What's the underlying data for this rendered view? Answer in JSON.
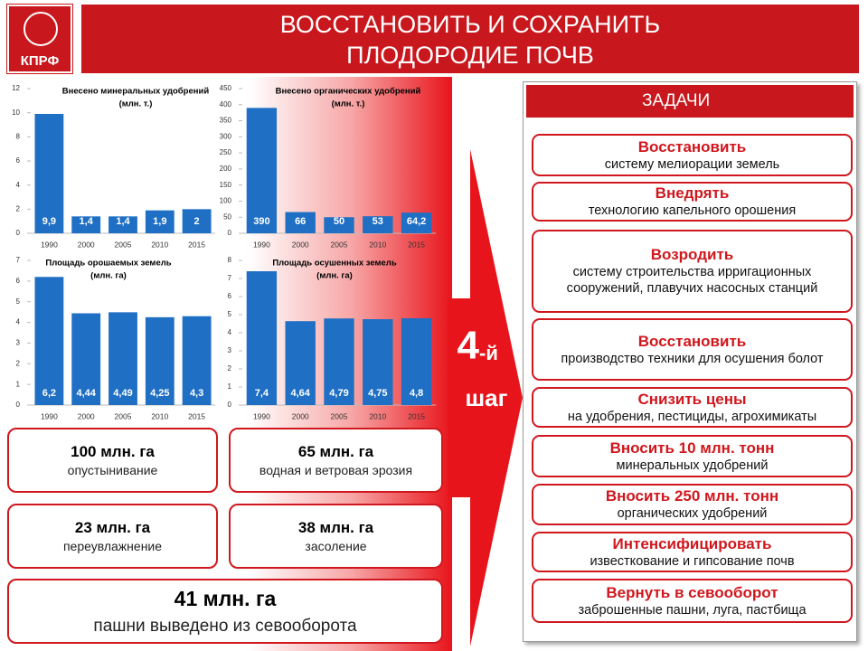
{
  "header": {
    "logo": "КПРФ",
    "title_lines": [
      "ВОССТАНОВИТЬ И СОХРАНИТЬ",
      "ПЛОДОРОДИЕ ПОЧВ"
    ]
  },
  "chart_data": [
    {
      "type": "bar",
      "title": "Внесено минеральных удобрений",
      "subtitle": "(млн. т.)",
      "color": "#1f6fc4",
      "categories": [
        "1990",
        "2000",
        "2005",
        "2010",
        "2015"
      ],
      "values": [
        9.9,
        1.4,
        1.4,
        1.9,
        2
      ],
      "value_labels": [
        "9,9",
        "1,4",
        "1,4",
        "1,9",
        "2"
      ],
      "ylim": [
        0,
        12
      ],
      "yticks": [
        0,
        2,
        4,
        6,
        8,
        10,
        12
      ]
    },
    {
      "type": "bar",
      "title": "Внесено органических удобрений",
      "subtitle": "(млн. т.)",
      "color": "#1f6fc4",
      "categories": [
        "1990",
        "2000",
        "2005",
        "2010",
        "2015"
      ],
      "values": [
        390,
        66,
        50,
        53,
        64.2
      ],
      "value_labels": [
        "390",
        "66",
        "50",
        "53",
        "64,2"
      ],
      "ylim": [
        0,
        450
      ],
      "yticks": [
        0,
        50,
        100,
        150,
        200,
        250,
        300,
        350,
        400,
        450
      ]
    },
    {
      "type": "bar",
      "title": "Площадь орошаемых земель",
      "subtitle": "(млн. га)",
      "color": "#1f6fc4",
      "categories": [
        "1990",
        "2000",
        "2005",
        "2010",
        "2015"
      ],
      "values": [
        6.2,
        4.44,
        4.49,
        4.25,
        4.3
      ],
      "value_labels": [
        "6,2",
        "4,44",
        "4,49",
        "4,25",
        "4,3"
      ],
      "ylim": [
        0,
        7
      ],
      "yticks": [
        0,
        1,
        2,
        3,
        4,
        5,
        6,
        7
      ]
    },
    {
      "type": "bar",
      "title": "Площадь осушенных земель",
      "subtitle": "(млн. га)",
      "color": "#1f6fc4",
      "categories": [
        "1990",
        "2000",
        "2005",
        "2010",
        "2015"
      ],
      "values": [
        7.4,
        4.64,
        4.79,
        4.75,
        4.8
      ],
      "value_labels": [
        "7,4",
        "4,64",
        "4,79",
        "4,75",
        "4,8"
      ],
      "ylim": [
        0,
        8
      ],
      "yticks": [
        0,
        1,
        2,
        3,
        4,
        5,
        6,
        7,
        8
      ]
    }
  ],
  "stats": [
    {
      "amount": "100 млн. га",
      "label": "опустынивание"
    },
    {
      "amount": "65 млн. га",
      "label": "водная и ветровая эрозия"
    },
    {
      "amount": "23 млн. га",
      "label": "переувлажнение"
    },
    {
      "amount": "38 млн. га",
      "label": "засоление"
    },
    {
      "amount": "41 млн. га",
      "label": "пашни выведено из севооборота"
    }
  ],
  "step": {
    "number": "4",
    "suffix": "-й",
    "word": "шаг"
  },
  "tasks": {
    "title": "ЗАДАЧИ",
    "items": [
      {
        "verb": "Восстановить",
        "text": "систему мелиорации земель"
      },
      {
        "verb": "Внедрять",
        "text": "технологию капельного орошения"
      },
      {
        "verb": "Возродить",
        "text": "систему строительства ирригационных сооружений, плавучих насосных станций"
      },
      {
        "verb": "Восстановить",
        "text": "производство техники для осушения болот"
      },
      {
        "verb": "Снизить цены",
        "text": "на удобрения, пестициды, агрохимикаты"
      },
      {
        "verb": "Вносить 10 млн. тонн",
        "text": "минеральных удобрений"
      },
      {
        "verb": "Вносить 250 млн. тонн",
        "text": "органических удобрений"
      },
      {
        "verb": "Интенсифицировать",
        "text": "известкование и гипсование почв"
      },
      {
        "verb": "Вернуть в севооборот",
        "text": "заброшенные пашни, луга, пастбища"
      }
    ]
  }
}
